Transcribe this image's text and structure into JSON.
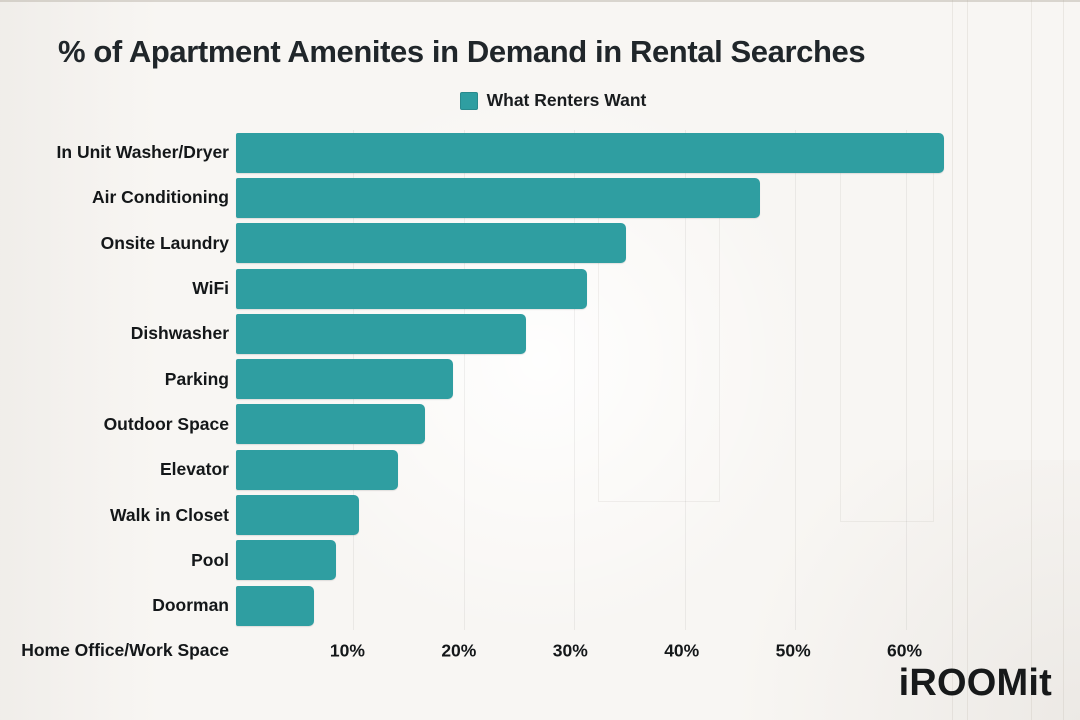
{
  "page": {
    "title": "% of Apartment Amenites in Demand in Rental Searches",
    "brand_logo": "iROOMit"
  },
  "legend": {
    "label": "What Renters Want",
    "swatch_color": "#2f9ea1"
  },
  "chart_data": {
    "type": "bar",
    "orientation": "horizontal",
    "title": "% of Apartment Amenites in Demand in Rental Searches",
    "legend_entries": [
      "What Renters Want"
    ],
    "legend_position": "top-center",
    "categories": [
      "In Unit Washer/Dryer",
      "Air Conditioning",
      "Onsite Laundry",
      "WiFi",
      "Dishwasher",
      "Parking",
      "Outdoor Space",
      "Elevator",
      "Walk in Closet",
      "Pool",
      "Doorman",
      "Home Office/Work Space"
    ],
    "series": [
      {
        "name": "What Renters Want",
        "values": [
          63.5,
          47,
          35,
          31.5,
          26,
          19.5,
          17,
          14.5,
          11,
          9,
          7,
          0
        ]
      }
    ],
    "value_unit": "%",
    "x_ticks": [
      {
        "value": 10,
        "label": "10%"
      },
      {
        "value": 20,
        "label": "20%"
      },
      {
        "value": 30,
        "label": "30%"
      },
      {
        "value": 40,
        "label": "40%"
      },
      {
        "value": 50,
        "label": "50%"
      },
      {
        "value": 60,
        "label": "60%"
      }
    ],
    "xlim": [
      0,
      70
    ],
    "grid": "vertical-faint",
    "bar_color": "#2f9ea1",
    "background_color": "#f8f6f3"
  }
}
